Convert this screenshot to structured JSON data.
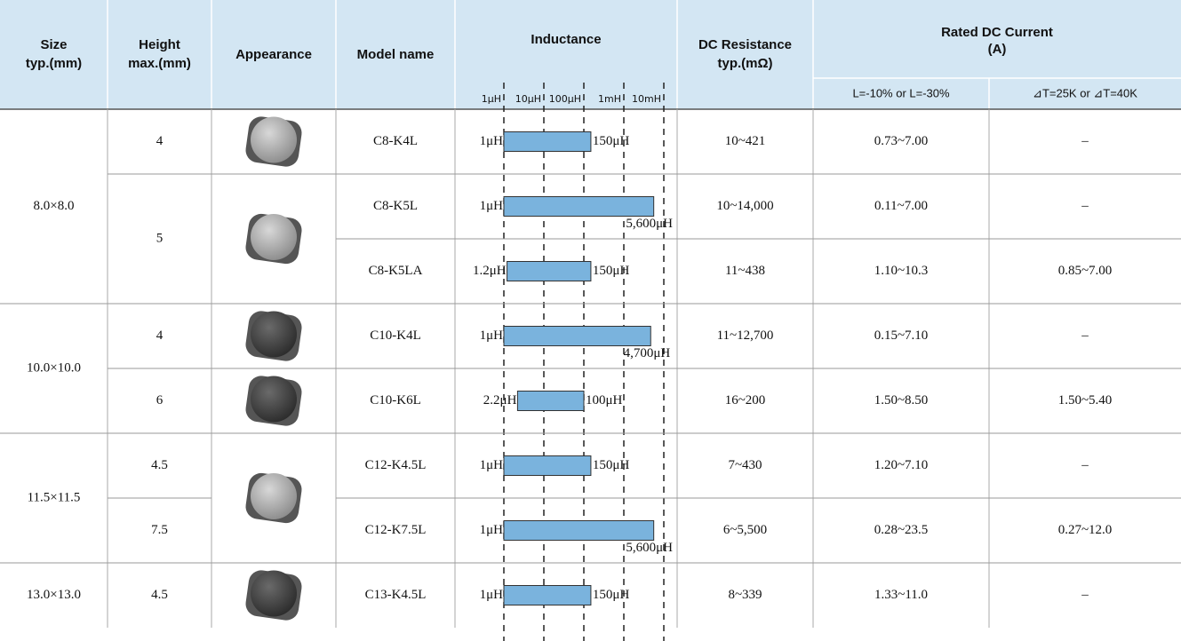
{
  "header": {
    "size": [
      "Size",
      "typ.(mm)"
    ],
    "height": [
      "Height",
      "max.(mm)"
    ],
    "appearance": "Appearance",
    "model": "Model name",
    "inductance": "Inductance",
    "dcr": [
      "DC Resistance",
      "typ.(mΩ)"
    ],
    "current": [
      "Rated DC Current",
      "(A)"
    ],
    "current_l": "L=-10% or L=-30%",
    "current_t": "⊿T=25K or ⊿T=40K",
    "scale": [
      {
        "value": 1,
        "label": "1μH"
      },
      {
        "value": 10,
        "label": "10μH"
      },
      {
        "value": 100,
        "label": "100μH"
      },
      {
        "value": 1000,
        "label": "1mH"
      },
      {
        "value": 10000,
        "label": "10mH"
      }
    ]
  },
  "groups": [
    {
      "size": "8.0×8.0",
      "heights": [
        {
          "height": "4",
          "models": [
            {
              "name": "C8-K4L",
              "inductance": [
                {
                  "value": 1,
                  "label": "1μH"
                },
                {
                  "value": 150,
                  "label": "150μH"
                }
              ],
              "dcr": "10~421",
              "current_l": "0.73~7.00",
              "current_t": "–"
            }
          ]
        },
        {
          "height": "5",
          "models": [
            {
              "name": "C8-K5L",
              "inductance": [
                {
                  "value": 1,
                  "label": "1μH"
                },
                {
                  "value": 5600,
                  "label": "5,600μH"
                }
              ],
              "dcr": "10~14,000",
              "current_l": "0.11~7.00",
              "current_t": "–"
            },
            {
              "name": "C8-K5LA",
              "inductance": [
                {
                  "value": 1.2,
                  "label": "1.2μH"
                },
                {
                  "value": 150,
                  "label": "150μH"
                }
              ],
              "dcr": "11~438",
              "current_l": "1.10~10.3",
              "current_t": "0.85~7.00"
            }
          ]
        }
      ]
    },
    {
      "size": "10.0×10.0",
      "heights": [
        {
          "height": "4",
          "models": [
            {
              "name": "C10-K4L",
              "inductance": [
                {
                  "value": 1,
                  "label": "1μH"
                },
                {
                  "value": 4700,
                  "label": "4,700μH"
                }
              ],
              "dcr": "11~12,700",
              "current_l": "0.15~7.10",
              "current_t": "–"
            }
          ]
        },
        {
          "height": "6",
          "models": [
            {
              "name": "C10-K6L",
              "inductance": [
                {
                  "value": 2.2,
                  "label": "2.2μH"
                },
                {
                  "value": 100,
                  "label": "100μH"
                }
              ],
              "dcr": "16~200",
              "current_l": "1.50~8.50",
              "current_t": "1.50~5.40"
            }
          ]
        }
      ]
    },
    {
      "size": "11.5×11.5",
      "heights": [
        {
          "height": "4.5",
          "models": [
            {
              "name": "C12-K4.5L",
              "inductance": [
                {
                  "value": 1,
                  "label": "1μH"
                },
                {
                  "value": 150,
                  "label": "150μH"
                }
              ],
              "dcr": "7~430",
              "current_l": "1.20~7.10",
              "current_t": "–"
            }
          ]
        },
        {
          "height": "7.5",
          "models": [
            {
              "name": "C12-K7.5L",
              "inductance": [
                {
                  "value": 1,
                  "label": "1μH"
                },
                {
                  "value": 5600,
                  "label": "5,600μH"
                }
              ],
              "dcr": "6~5,500",
              "current_l": "0.28~23.5",
              "current_t": "0.27~12.0"
            }
          ]
        }
      ]
    },
    {
      "size": "13.0×13.0",
      "heights": [
        {
          "height": "4.5",
          "models": [
            {
              "name": "C13-K4.5L",
              "inductance": [
                {
                  "value": 1,
                  "label": "1μH"
                },
                {
                  "value": 150,
                  "label": "150μH"
                }
              ],
              "dcr": "8~339",
              "current_l": "1.33~11.0",
              "current_t": "–"
            }
          ]
        }
      ]
    }
  ]
}
